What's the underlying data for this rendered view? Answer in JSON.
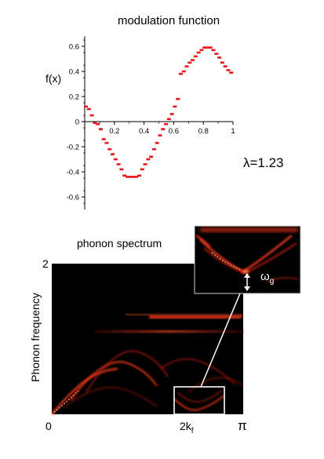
{
  "chart_data": [
    {
      "type": "scatter",
      "title": "modulation function",
      "ylabel": "f(x)",
      "xlabel": "",
      "xlim": [
        0,
        1
      ],
      "ylim": [
        -0.7,
        0.7
      ],
      "x_ticks": [
        "0.2",
        "0.4",
        "0.6",
        "0.8",
        "1"
      ],
      "y_ticks": [
        "0.6",
        "0.4",
        "0.2",
        "0",
        "-0.2",
        "-0.4",
        "-0.6"
      ],
      "grid": false,
      "color": "#e8161a",
      "x": [
        0.0,
        0.02,
        0.04,
        0.06,
        0.08,
        0.1,
        0.12,
        0.14,
        0.16,
        0.18,
        0.2,
        0.22,
        0.24,
        0.26,
        0.28,
        0.3,
        0.32,
        0.34,
        0.36,
        0.38,
        0.4,
        0.42,
        0.44,
        0.46,
        0.48,
        0.5,
        0.52,
        0.54,
        0.56,
        0.58,
        0.6,
        0.62,
        0.64,
        0.66,
        0.68,
        0.7,
        0.72,
        0.74,
        0.76,
        0.78,
        0.8,
        0.82,
        0.84,
        0.86,
        0.88,
        0.9,
        0.92,
        0.94,
        0.96,
        0.98
      ],
      "y": [
        0.12,
        0.1,
        0.05,
        -0.01,
        -0.02,
        -0.06,
        -0.14,
        -0.17,
        -0.22,
        -0.26,
        -0.3,
        -0.34,
        -0.38,
        -0.43,
        -0.44,
        -0.44,
        -0.44,
        -0.44,
        -0.43,
        -0.38,
        -0.34,
        -0.3,
        -0.28,
        -0.22,
        -0.17,
        -0.11,
        -0.06,
        -0.02,
        0.02,
        0.06,
        0.12,
        0.18,
        0.38,
        0.4,
        0.44,
        0.47,
        0.49,
        0.52,
        0.55,
        0.57,
        0.59,
        0.59,
        0.59,
        0.57,
        0.54,
        0.51,
        0.47,
        0.44,
        0.41,
        0.39
      ]
    },
    {
      "type": "heatmap",
      "title": "phonon spectrum",
      "ylabel": "Phonon frequency",
      "xlabel": "",
      "x_ticks": [
        "0",
        "2k_f",
        "π"
      ],
      "y_ticks": [
        "2"
      ],
      "annotations": [
        "λ=1.23",
        "ω_g"
      ],
      "colormap": "black-red"
    }
  ],
  "labels": {
    "mod_title": "modulation function",
    "fx": "f(x)",
    "lambda": "λ=1.23",
    "spec_title": "phonon spectrum",
    "ylabel": "Phonon frequency",
    "tick_2": "2",
    "tick_0": "0",
    "tick_2k": "2k",
    "tick_f": "f",
    "tick_pi": "π",
    "omega": "ω",
    "omega_sub": "g"
  },
  "colors": {
    "marker": "#e8161a",
    "spectrum_bg": "#000000",
    "band": "#ff3b1f",
    "highlight": "#ffd9a0"
  }
}
